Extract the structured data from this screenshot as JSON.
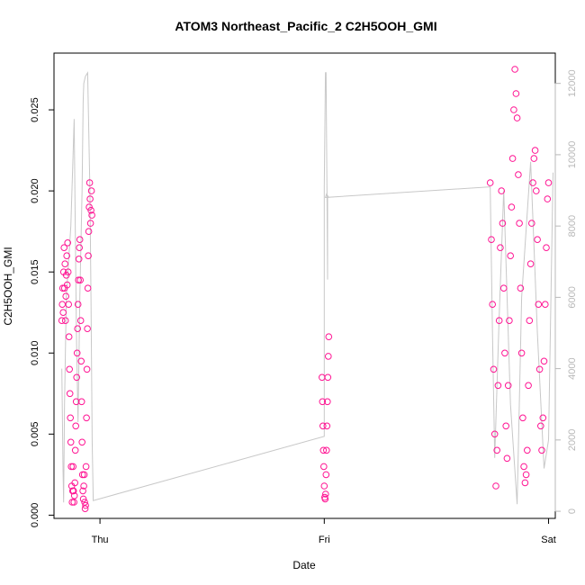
{
  "chart_data": {
    "type": "scatter",
    "title": "ATOM3 Northeast_Pacific_2 C2H5OOH_GMI",
    "xlabel": "Date",
    "ylabel": "C2H5OOH_GMI",
    "x_ticks": [
      "Thu",
      "Fri",
      "Sat"
    ],
    "x_tick_values": [
      0,
      1,
      2
    ],
    "xlim": [
      -0.205,
      2.03
    ],
    "ylim": [
      -0.0002,
      0.0285
    ],
    "y_ticks": [
      0.0,
      0.005,
      0.01,
      0.015,
      0.02,
      0.025
    ],
    "y_tick_labels": [
      "0.000",
      "0.005",
      "0.010",
      "0.015",
      "0.020",
      "0.025"
    ],
    "y2_ticks": [
      0,
      2000,
      4000,
      6000,
      8000,
      10000,
      12000
    ],
    "y2_tick_labels": [
      "0",
      "2000",
      "4000",
      "6000",
      "8000",
      "10000",
      "12000"
    ],
    "y2lim": [
      -200,
      12850
    ],
    "colors": {
      "points": "#ff1493",
      "altitude_line": "#c8c8c8",
      "right_axis": "#b8b8b8",
      "axis": "#000000"
    },
    "altitude_series": {
      "x": [
        -0.17,
        -0.165,
        -0.162,
        -0.158,
        -0.15,
        -0.13,
        -0.12,
        -0.115,
        -0.112,
        -0.105,
        -0.098,
        -0.09,
        -0.08,
        -0.075,
        -0.072,
        -0.065,
        -0.055,
        -0.045,
        -0.04,
        -0.035,
        -0.03,
        -0.03,
        1.0,
        1.0,
        1.005,
        1.008,
        1.012,
        1.015,
        1.015,
        1.02,
        1.02,
        1.01,
        1.005,
        1.74,
        1.75,
        1.76,
        1.78,
        1.8,
        1.83,
        1.86,
        1.88,
        1.92,
        1.95,
        1.98,
        2.0,
        2.02
      ],
      "y": [
        4000,
        1200,
        250,
        3000,
        6000,
        8000,
        10000,
        11000,
        9000,
        5000,
        2500,
        6000,
        9000,
        11500,
        12000,
        12200,
        12300,
        9000,
        6000,
        2000,
        300,
        300,
        2100,
        9100,
        12300,
        12300,
        9000,
        6500,
        8800,
        8800,
        8800,
        8900,
        8800,
        9100,
        5000,
        1500,
        5500,
        9000,
        3000,
        200,
        6000,
        9800,
        5000,
        1200,
        2000,
        9500
      ]
    },
    "series": [
      {
        "x": [
          -0.17,
          -0.168,
          -0.166,
          -0.164,
          -0.162,
          -0.16,
          -0.158,
          -0.156,
          -0.154,
          -0.152,
          -0.15,
          -0.148,
          -0.146,
          -0.144,
          -0.142,
          -0.14,
          -0.138,
          -0.136,
          -0.134,
          -0.132,
          -0.13,
          -0.128,
          -0.126,
          -0.124,
          -0.122,
          -0.12,
          -0.118,
          -0.116,
          -0.114,
          -0.112,
          -0.11,
          -0.108,
          -0.106,
          -0.104,
          -0.102,
          -0.1,
          -0.098,
          -0.096,
          -0.094,
          -0.092,
          -0.09,
          -0.088,
          -0.086,
          -0.084,
          -0.082,
          -0.08,
          -0.078,
          -0.076,
          -0.074,
          -0.072,
          -0.07,
          -0.068,
          -0.066,
          -0.064,
          -0.062,
          -0.06,
          -0.058,
          -0.056,
          -0.054,
          -0.052,
          -0.05,
          -0.048,
          -0.046,
          -0.044,
          -0.042,
          -0.04,
          -0.038,
          -0.036
        ],
        "y": [
          0.012,
          0.013,
          0.014,
          0.0125,
          0.015,
          0.0165,
          0.014,
          0.0155,
          0.012,
          0.0135,
          0.0148,
          0.016,
          0.0142,
          0.0168,
          0.015,
          0.013,
          0.011,
          0.009,
          0.0075,
          0.006,
          0.0045,
          0.003,
          0.0018,
          0.0008,
          0.0015,
          0.003,
          0.0015,
          0.0008,
          0.0012,
          0.002,
          0.004,
          0.0055,
          0.007,
          0.0085,
          0.01,
          0.0115,
          0.013,
          0.0145,
          0.0158,
          0.0165,
          0.017,
          0.0145,
          0.012,
          0.0095,
          0.007,
          0.0045,
          0.0025,
          0.0015,
          0.001,
          0.0018,
          0.0025,
          0.0008,
          0.0004,
          0.0006,
          0.003,
          0.006,
          0.009,
          0.0115,
          0.014,
          0.016,
          0.0175,
          0.019,
          0.0205,
          0.0195,
          0.018,
          0.0188,
          0.02,
          0.0185
        ]
      },
      {
        "x": [
          0.99,
          0.992,
          0.994,
          0.996,
          0.998,
          1.0,
          1.002,
          1.004,
          1.006,
          1.008,
          1.01,
          1.012,
          1.014,
          1.016,
          1.018,
          1.02
        ],
        "y": [
          0.0085,
          0.007,
          0.0055,
          0.004,
          0.003,
          0.0018,
          0.0011,
          0.001,
          0.0013,
          0.0025,
          0.004,
          0.0055,
          0.007,
          0.0085,
          0.0098,
          0.011
        ]
      },
      {
        "x": [
          1.74,
          1.745,
          1.75,
          1.755,
          1.76,
          1.765,
          1.77,
          1.775,
          1.78,
          1.785,
          1.79,
          1.795,
          1.8,
          1.805,
          1.81,
          1.815,
          1.82,
          1.825,
          1.83,
          1.835,
          1.84,
          1.845,
          1.85,
          1.855,
          1.86,
          1.865,
          1.87,
          1.875,
          1.88,
          1.885,
          1.89,
          1.895,
          1.9,
          1.905,
          1.91,
          1.915,
          1.92,
          1.925,
          1.93,
          1.935,
          1.94,
          1.945,
          1.95,
          1.955,
          1.96,
          1.965,
          1.97,
          1.975,
          1.98,
          1.985,
          1.99,
          1.995,
          2.0
        ],
        "y": [
          0.0205,
          0.017,
          0.013,
          0.009,
          0.005,
          0.0018,
          0.004,
          0.008,
          0.012,
          0.0165,
          0.02,
          0.018,
          0.014,
          0.01,
          0.0055,
          0.0035,
          0.008,
          0.012,
          0.016,
          0.019,
          0.022,
          0.025,
          0.0275,
          0.026,
          0.0245,
          0.021,
          0.018,
          0.014,
          0.01,
          0.006,
          0.003,
          0.002,
          0.0025,
          0.004,
          0.008,
          0.012,
          0.0155,
          0.018,
          0.0205,
          0.022,
          0.0225,
          0.02,
          0.017,
          0.013,
          0.009,
          0.0055,
          0.004,
          0.006,
          0.0095,
          0.013,
          0.0165,
          0.0195,
          0.0205
        ]
      }
    ]
  }
}
